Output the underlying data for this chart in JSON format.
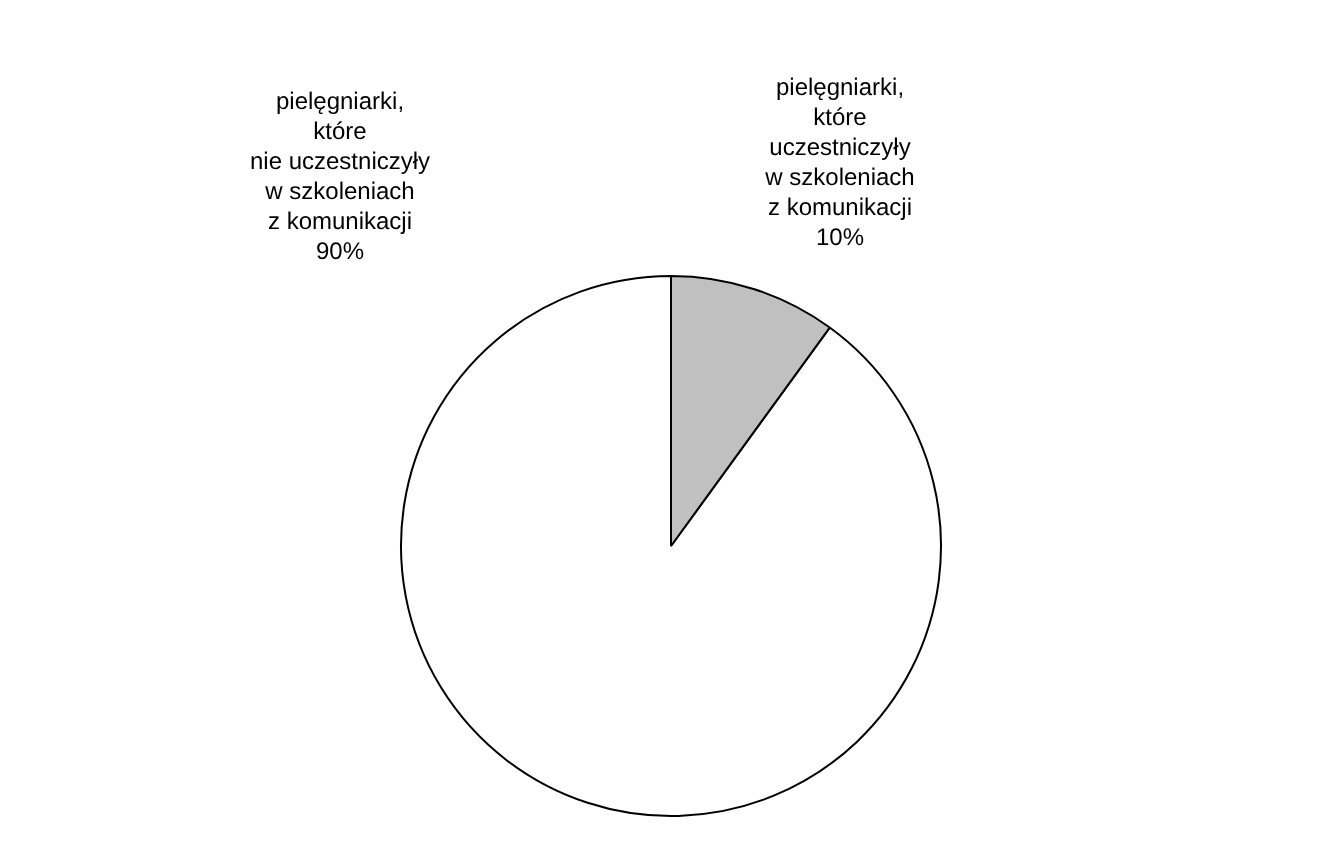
{
  "chart_data": {
    "type": "pie",
    "categories": [
      "pielęgniarki,\nktóre\nnie uczestniczyły\nw szkoleniach\nz komunikacji",
      "pielęgniarki,\nktóre\nuczestniczyły\nw szkoleniach\nz komunikacji"
    ],
    "values": [
      90,
      10
    ],
    "colors": [
      "#ffffff",
      "#c0c0c0"
    ],
    "value_labels": [
      "90%",
      "10%"
    ]
  }
}
